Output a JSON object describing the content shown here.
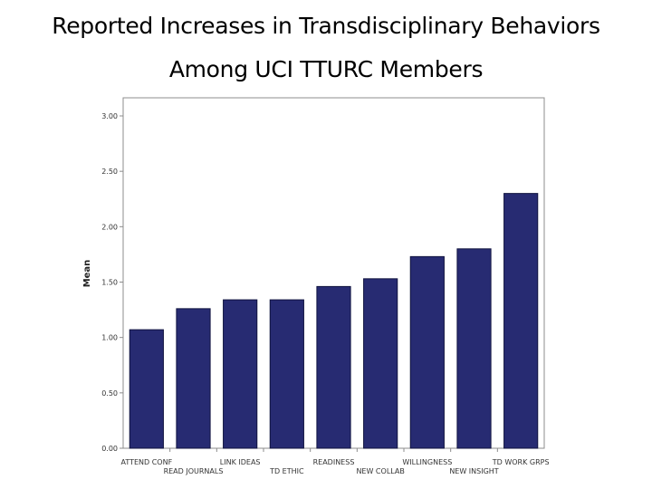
{
  "page": {
    "title_line_1": "Reported Increases in Transdisciplinary Behaviors",
    "title_line_2": "Among UCI TTURC Members"
  },
  "colors": {
    "bar_fill": "#272b72",
    "bar_stroke": "#10133f",
    "frame": "#8c8c8c",
    "tick_text": "#333333"
  },
  "chart_data": {
    "type": "bar",
    "title": "",
    "xlabel": "",
    "ylabel": "Mean",
    "ylim": [
      0,
      3
    ],
    "yticks": [
      "0.00",
      "0.50",
      "1.00",
      "1.50",
      "2.00",
      "2.50",
      "3.00"
    ],
    "grid": false,
    "legend": "none",
    "categories": [
      "ATTEND CONF",
      "READ JOURNALS",
      "LINK IDEAS",
      "TD ETHIC",
      "READINESS",
      "NEW COLLAB",
      "WILLINGNESS",
      "NEW INSIGHT",
      "TD WORK GRPS"
    ],
    "values": [
      1.07,
      1.26,
      1.34,
      1.34,
      1.46,
      1.53,
      1.73,
      1.8,
      2.3
    ]
  }
}
